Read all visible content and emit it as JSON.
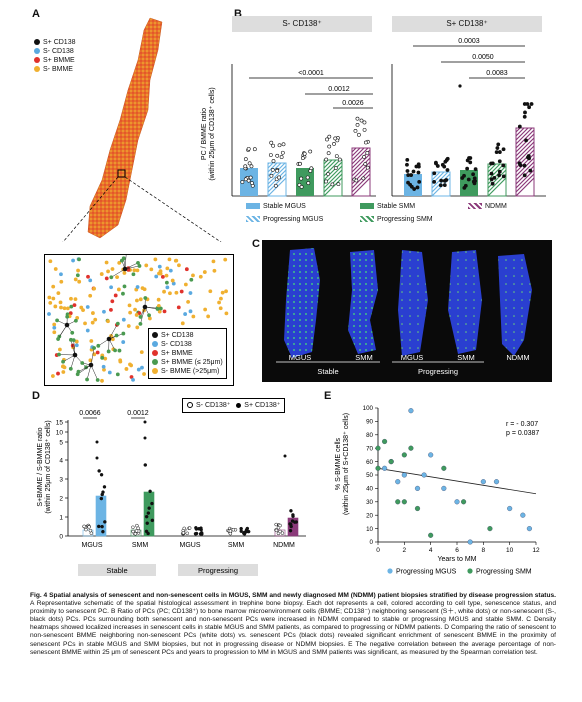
{
  "panels": {
    "a": "A",
    "b": "B",
    "c": "C",
    "d": "D",
    "e": "E"
  },
  "colors": {
    "s_pos_cd138": "#111111",
    "s_neg_cd138": "#5aa9e0",
    "s_pos_bmme": "#e0322c",
    "s_neg_bmme": "#f0b030",
    "bmme_near": "#4a9a50",
    "mgus": "#6cb4e4",
    "smm": "#3f9a5e",
    "ndmm": "#8b3a7a"
  },
  "legend_a": [
    "S+ CD138",
    "S- CD138",
    "S+ BMME",
    "S- BMME"
  ],
  "legend_a2": [
    "S+ CD138",
    "S-  CD138",
    "S+ BMME",
    "S+ BMME (≤ 25μm)",
    "S-  BMME (>25μm)"
  ],
  "panel_b": {
    "headers": [
      "S- CD138⁺",
      "S+ CD138⁺"
    ],
    "ylabel": "PC / BMME ratio\n(within 25μm of CD138⁺ cells)",
    "pvalues_left": [
      "<0.0001",
      "0.0012",
      "0.0026"
    ],
    "pvalues_right": [
      "0.0003",
      "0.0050",
      "0.0083"
    ],
    "legend": [
      "Stable MGUS",
      "Stable SMM",
      "NDMM",
      "Progressing MGUS",
      "Progressing SMM"
    ]
  },
  "panel_c": {
    "labels": [
      "MGUS",
      "SMM",
      "MGUS",
      "SMM",
      "NDMM"
    ],
    "groups": [
      "Stable",
      "Progressing"
    ]
  },
  "panel_d": {
    "ylabel": "S+BMME / S-BMME ratio\n(within 25μm of CD138⁺ cells)",
    "legend": [
      "S- CD138⁺",
      "S+ CD138⁺"
    ],
    "pvalues": [
      "0.0066",
      "0.0012"
    ],
    "yticks": [
      "0",
      "1",
      "2",
      "3",
      "4",
      "5",
      "10",
      "15"
    ],
    "categories": [
      "MGUS",
      "SMM",
      "MGUS",
      "SMM",
      "NDMM"
    ],
    "groups": [
      "Stable",
      "Progressing"
    ]
  },
  "chart_data": {
    "type": "scatter",
    "xlabel": "Years to MM",
    "ylabel": "% S-BMME cells\n(within 25μm of S+CD138⁺ cells)",
    "xlim": [
      0,
      12
    ],
    "ylim": [
      0,
      100
    ],
    "xticks": [
      "0",
      "2",
      "4",
      "6",
      "8",
      "10",
      "12"
    ],
    "yticks": [
      "0",
      "10",
      "20",
      "30",
      "40",
      "50",
      "60",
      "70",
      "80",
      "90",
      "100"
    ],
    "annotation": [
      "r = - 0.307",
      "p = 0.0387"
    ],
    "series": [
      {
        "name": "Progressing MGUS",
        "color": "#6cb4e4",
        "x": [
          0.5,
          1.0,
          1.5,
          2.0,
          2.5,
          3.0,
          3.5,
          4.0,
          5.0,
          6.0,
          7.0,
          8.0,
          9.0,
          10.0,
          11.0,
          11.5
        ],
        "y": [
          55,
          60,
          45,
          50,
          98,
          40,
          50,
          65,
          40,
          30,
          0,
          45,
          45,
          25,
          20,
          10
        ]
      },
      {
        "name": "Progressing SMM",
        "color": "#3f9a5e",
        "x": [
          0,
          0,
          0.5,
          1.0,
          1.5,
          2.0,
          2.0,
          2.5,
          3.0,
          4.0,
          5.0,
          6.5,
          8.5
        ],
        "y": [
          70,
          55,
          75,
          60,
          30,
          65,
          30,
          70,
          25,
          5,
          55,
          30,
          10
        ]
      }
    ]
  },
  "caption": {
    "title": "Fig. 4   Spatial analysis of senescent and non-senescent cells in MGUS, SMM and newly diagnosed MM (NDMM) patient biopsies stratified by disease progression status.",
    "body": "A Representative schematic of the spatial histological assessment in trephine bone biopsy. Each dot represents a cell, colored according to cell type, senescence status, and proximity to senescent PC. B Ratio of PCs (PC; CD138⁺) to bone marrow microenvironment cells (BMME; CD138⁻) neighboring senescent (S＋, white dots) or non-senescent (S-, black dots) PCs. PCs surrounding both senescent and non-senescent PCs were increased in NDMM compared to stable or progressing MGUS and stable SMM. C Density heatmaps showed localized increases in senescent cells in stable MGUS and SMM patients, as compared to progressing or NDMM patients. D Comparing the ratio of senescent to non-senescent BMME neighboring non-senescent PCs (white dots) vs. senescent PCs (black dots) revealed significant enrichment of senescent BMME in the proximity of senescent PCs in stable MGUS and SMM biopsies, but not in progressing disease or NDMM biopsies. E The negative correlation between the average percentage of non-senescent BMME within 25 μm of senescent PCs and years to progression to MM in MGUS and SMM patients was significant, as measured by the Spearman correlation test."
  }
}
